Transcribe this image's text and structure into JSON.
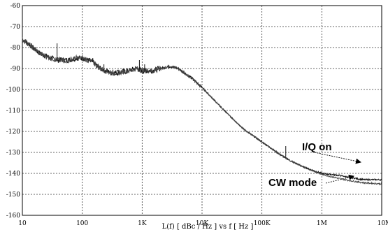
{
  "chart_data": {
    "type": "line",
    "title": "",
    "xlabel": "L(f)  [ dBc / Hz ]  vs  f  [ Hz ]",
    "ylabel": "",
    "x_scale": "log",
    "xlim": [
      10,
      10000000
    ],
    "ylim": [
      -160,
      -60
    ],
    "grid": true,
    "x_tick_labels": [
      "10",
      "100",
      "1K",
      "10K",
      "100K",
      "1M",
      "10M"
    ],
    "y_tick_labels": [
      "-60",
      "-70",
      "-80",
      "-90",
      "-100",
      "-110",
      "-120",
      "-130",
      "-140",
      "-150",
      "-160"
    ],
    "series": [
      {
        "name": "I/Q on",
        "x": [
          10,
          15,
          20,
          30,
          40,
          60,
          80,
          100,
          150,
          200,
          300,
          400,
          600,
          800,
          1000,
          1500,
          2000,
          3000,
          4000,
          5000,
          7000,
          10000,
          20000,
          30000,
          50000,
          100000,
          200000,
          300000,
          500000,
          1000000,
          2000000,
          3000000,
          5000000,
          10000000
        ],
        "y": [
          -76,
          -80,
          -83,
          -85,
          -86,
          -86,
          -85,
          -85,
          -87,
          -90,
          -92,
          -92,
          -91,
          -90,
          -91,
          -91,
          -90,
          -89,
          -90,
          -92,
          -95,
          -99,
          -108,
          -113,
          -119,
          -125,
          -131,
          -134,
          -137,
          -140,
          -141,
          -142,
          -143,
          -143
        ]
      },
      {
        "name": "CW mode",
        "x": [
          10,
          15,
          20,
          30,
          40,
          60,
          80,
          100,
          150,
          200,
          300,
          400,
          600,
          800,
          1000,
          1500,
          2000,
          3000,
          4000,
          5000,
          7000,
          10000,
          20000,
          30000,
          50000,
          100000,
          200000,
          300000,
          500000,
          1000000,
          2000000,
          3000000,
          5000000,
          10000000
        ],
        "y": [
          -76,
          -80,
          -83,
          -85,
          -86,
          -86,
          -85,
          -85,
          -87,
          -90,
          -92,
          -92,
          -91,
          -90,
          -91,
          -91,
          -90,
          -89,
          -90,
          -92,
          -95,
          -99,
          -108,
          -113,
          -119,
          -125,
          -131,
          -134,
          -137,
          -140.5,
          -142.5,
          -143.5,
          -144.5,
          -145
        ]
      }
    ],
    "spikes": [
      {
        "x": 38,
        "y_base": -85,
        "y_top": -78
      },
      {
        "x": 150,
        "y_base": -87,
        "y_top": -85
      },
      {
        "x": 230,
        "y_base": -91,
        "y_top": -88
      },
      {
        "x": 900,
        "y_base": -91,
        "y_top": -86
      },
      {
        "x": 1100,
        "y_base": -91,
        "y_top": -88
      },
      {
        "x": 250000,
        "y_base": -132,
        "y_top": -127
      }
    ],
    "annotations": [
      {
        "text": "I/Q on",
        "points_to_x": 7000000,
        "points_to_y": -142.5
      },
      {
        "text": "CW mode",
        "points_to_x": 5000000,
        "points_to_y": -144.5
      }
    ]
  }
}
